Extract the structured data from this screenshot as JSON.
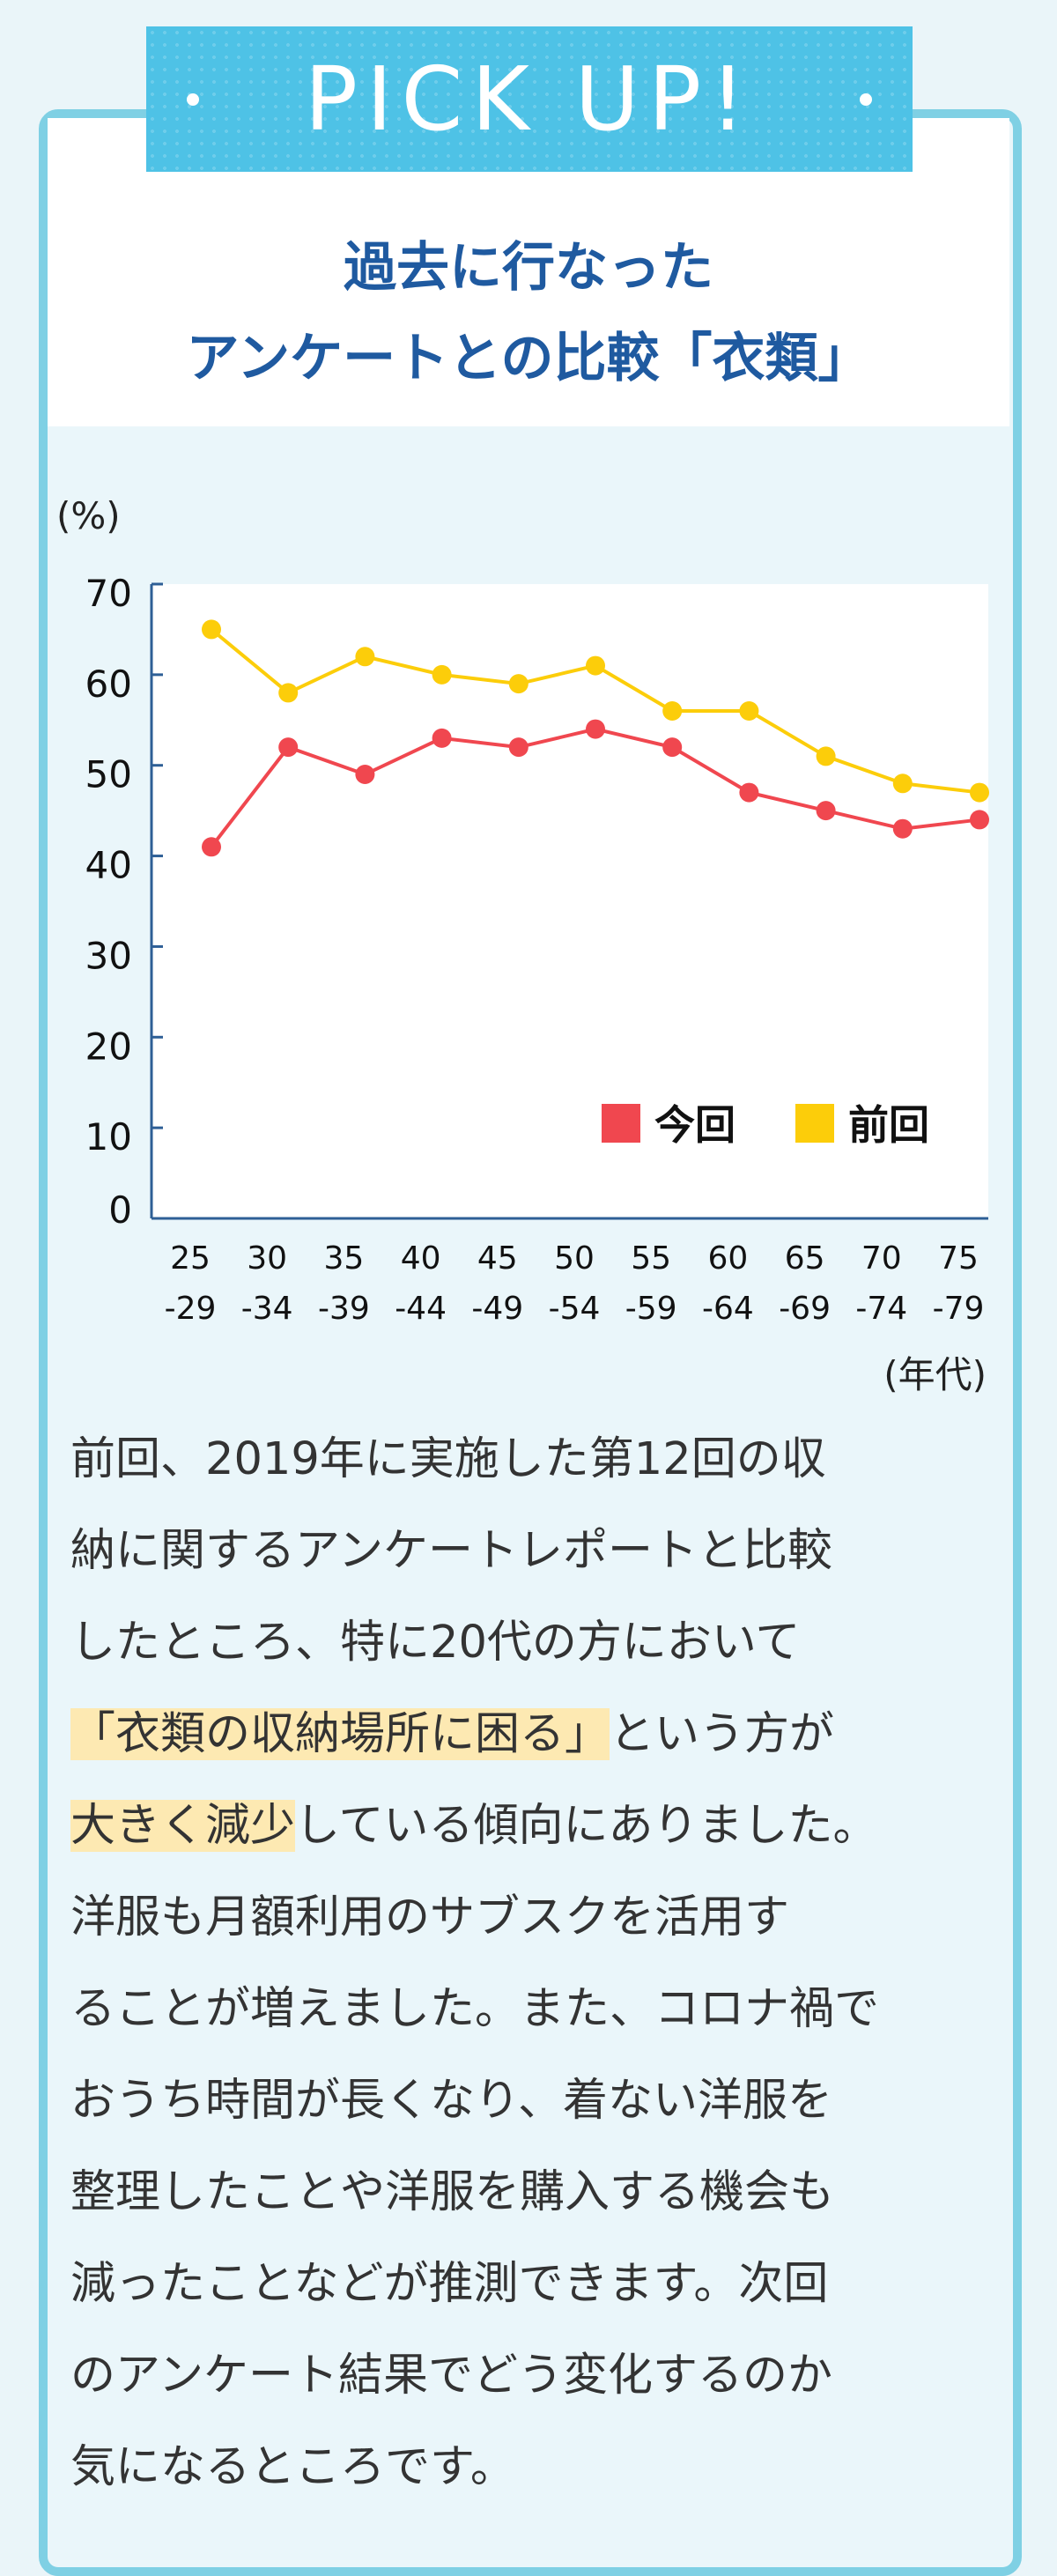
{
  "banner": {
    "label": "PICK UP!"
  },
  "title": {
    "line1": "過去に行なった",
    "line2": "アンケートとの比較「衣類」"
  },
  "chart_data": {
    "type": "line",
    "ylabel": "(%)",
    "xlabel": "(年代)",
    "ylim": [
      0,
      70
    ],
    "yticks": [
      "0",
      "10",
      "20",
      "30",
      "40",
      "50",
      "60",
      "70"
    ],
    "categories": [
      [
        "25",
        "-29"
      ],
      [
        "30",
        "-34"
      ],
      [
        "35",
        "-39"
      ],
      [
        "40",
        "-44"
      ],
      [
        "45",
        "-49"
      ],
      [
        "50",
        "-54"
      ],
      [
        "55",
        "-59"
      ],
      [
        "60",
        "-64"
      ],
      [
        "65",
        "-69"
      ],
      [
        "70",
        "-74"
      ],
      [
        "75",
        "-79"
      ]
    ],
    "series": [
      {
        "name": "今回",
        "color": "#f0474f",
        "values": [
          41,
          52,
          49,
          53,
          52,
          54,
          52,
          47,
          45,
          43,
          44
        ]
      },
      {
        "name": "前回",
        "color": "#fccd0a",
        "values": [
          65,
          58,
          62,
          60,
          59,
          61,
          56,
          56,
          51,
          48,
          47
        ]
      }
    ],
    "legend": "bottom-right",
    "grid": false
  },
  "body": {
    "line1": "前回、2019年に実施した第12回の収",
    "line2": "納に関するアンケートレポートと比較",
    "line3": "したところ、特に20代の方において",
    "line4_highlight": "「衣類の収納場所に困る」",
    "line4_rest": "という方が",
    "line5_highlight": "大きく減少",
    "line5_rest": "している傾向にありました。",
    "line6": "洋服も月額利用のサブスクを活用す",
    "line7": "ることが増えました。また、コロナ禍で",
    "line8": "おうち時間が長くなり、着ない洋服を",
    "line9": "整理したことや洋服を購入する機会も",
    "line10": "減ったことなどが推測できます。次回",
    "line11": "のアンケート結果でどう変化するのか",
    "line12": "気になるところです。"
  }
}
